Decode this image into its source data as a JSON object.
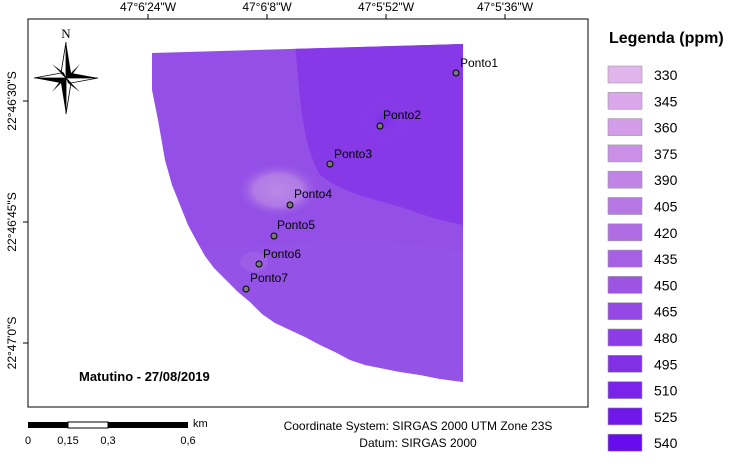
{
  "map": {
    "top_ticks": [
      "47°6'24\"W",
      "47°6'8\"W",
      "47°5'52\"W",
      "47°5'36\"W"
    ],
    "left_ticks": [
      "22°46'30\"S",
      "22°46'45\"S",
      "22°47'0\"S"
    ],
    "date_label": "Matutino - 27/08/2019",
    "north_label": "N",
    "points": [
      "Ponto1",
      "Ponto2",
      "Ponto3",
      "Ponto4",
      "Ponto5",
      "Ponto6",
      "Ponto7"
    ]
  },
  "legend": {
    "title": "Legenda (ppm)",
    "items": [
      {
        "value": "330",
        "color": "#e2b4ec"
      },
      {
        "value": "345",
        "color": "#daa8ea"
      },
      {
        "value": "360",
        "color": "#d29ce8"
      },
      {
        "value": "375",
        "color": "#c990e6"
      },
      {
        "value": "390",
        "color": "#c084e5"
      },
      {
        "value": "405",
        "color": "#b878e4"
      },
      {
        "value": "420",
        "color": "#af6ce3"
      },
      {
        "value": "435",
        "color": "#a660e3"
      },
      {
        "value": "450",
        "color": "#9d54e3"
      },
      {
        "value": "465",
        "color": "#9448e4"
      },
      {
        "value": "480",
        "color": "#8b3ce5"
      },
      {
        "value": "495",
        "color": "#8230e6"
      },
      {
        "value": "510",
        "color": "#7924e8"
      },
      {
        "value": "525",
        "color": "#7018ea"
      },
      {
        "value": "540",
        "color": "#670cec"
      }
    ]
  },
  "scale_bar": {
    "labels": [
      "0",
      "0,15",
      "0,3",
      "0,6"
    ],
    "unit": "km"
  },
  "info": {
    "coordinate_system": "Coordinate System: SIRGAS 2000 UTM Zone 23S",
    "datum": "Datum: SIRGAS 2000"
  }
}
